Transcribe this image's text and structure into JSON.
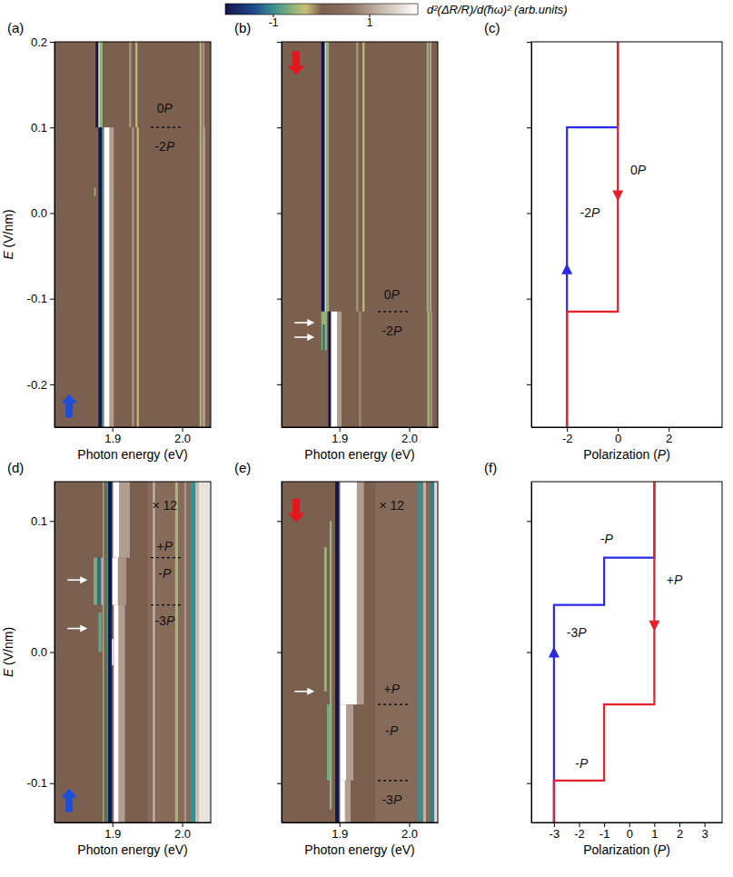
{
  "chart_data": [
    {
      "type": "heatmap",
      "title": "(a)",
      "xlabel": "Photon energy (eV)",
      "ylabel": "E (V/nm)",
      "xlim": [
        1.817,
        2.041
      ],
      "xticks": [
        1.9,
        {
          "value": 2,
          "label": "2.0"
        }
      ],
      "ylim": [
        -0.25,
        0.2
      ],
      "yticks": [
        -0.2,
        -0.1,
        {
          "value": 0,
          "label": "0.0"
        },
        0.1,
        0.2
      ],
      "colorbar": {
        "label": "d²(ΔR/R)/d(ħω)² (arb.units)",
        "range": [
          -2,
          2
        ],
        "ticks": [
          -1,
          1
        ]
      },
      "heatmap": {
        "background": 0,
        "cells": [
          [
            1.876,
            1.88,
            0.1,
            0.2,
            -2
          ],
          [
            1.88,
            1.882,
            0.1,
            0.2,
            1.6
          ],
          [
            1.882,
            1.886,
            0.1,
            0.2,
            -0.6
          ],
          [
            1.924,
            1.927,
            0.1,
            0.2,
            0.9
          ],
          [
            1.933,
            1.936,
            0.1,
            0.2,
            -0.4
          ],
          [
            2.025,
            2.028,
            0.1,
            0.2,
            -0.5
          ],
          [
            2.029,
            2.032,
            0.1,
            0.2,
            0.9
          ],
          [
            1.88,
            1.885,
            -0.25,
            0.1,
            -2
          ],
          [
            1.885,
            1.888,
            -0.25,
            0.1,
            -1.0
          ],
          [
            1.888,
            1.896,
            -0.25,
            0.1,
            2
          ],
          [
            1.896,
            1.902,
            -0.25,
            0.1,
            1.0
          ],
          [
            1.928,
            1.931,
            -0.25,
            0.1,
            0.9
          ],
          [
            1.935,
            1.938,
            -0.25,
            0.1,
            -0.3
          ],
          [
            2.025,
            2.028,
            -0.25,
            0.1,
            -0.5
          ],
          [
            2.029,
            2.033,
            -0.25,
            0.1,
            1.0
          ],
          [
            1.874,
            1.876,
            0.02,
            0.03,
            -0.5
          ]
        ]
      },
      "annotations": [
        {
          "text": "0P",
          "x": 1.975,
          "y": 0.122
        },
        {
          "text": "-2P",
          "x": 1.975,
          "y": 0.078
        }
      ],
      "dashed_lines": [
        {
          "y": 0.1,
          "x": [
            1.955,
            2.0
          ]
        }
      ],
      "arrows": [
        {
          "x": 1.838,
          "y": -0.225,
          "direction": "up",
          "color": "#1f4fd8"
        }
      ]
    },
    {
      "type": "heatmap",
      "title": "(b)",
      "xlabel": "Photon energy (eV)",
      "tick_labels": "x",
      "xlim": [
        1.817,
        2.041
      ],
      "xticks": [
        1.9,
        {
          "value": 2,
          "label": "2.0"
        }
      ],
      "ylim": [
        -0.25,
        0.2
      ],
      "yticks": [
        -0.2,
        -0.1,
        0,
        0.1,
        0.2
      ],
      "heatmap": {
        "background": 0,
        "cells": [
          [
            1.874,
            1.879,
            -0.115,
            0.2,
            -2
          ],
          [
            1.879,
            1.881,
            -0.115,
            0.2,
            1.6
          ],
          [
            1.881,
            1.885,
            -0.115,
            0.2,
            -0.6
          ],
          [
            1.924,
            1.927,
            -0.115,
            0.2,
            0.9
          ],
          [
            1.933,
            1.936,
            -0.115,
            0.2,
            -0.4
          ],
          [
            2.025,
            2.028,
            -0.115,
            0.2,
            -0.6
          ],
          [
            2.029,
            2.032,
            -0.115,
            0.2,
            1.0
          ],
          [
            1.884,
            1.888,
            -0.25,
            -0.115,
            -2
          ],
          [
            1.888,
            1.897,
            -0.25,
            -0.115,
            2
          ],
          [
            1.897,
            1.903,
            -0.25,
            -0.115,
            1.0
          ],
          [
            1.928,
            1.931,
            -0.25,
            -0.115,
            0.8
          ],
          [
            2.026,
            2.029,
            -0.25,
            -0.115,
            -0.5
          ],
          [
            2.03,
            2.033,
            -0.25,
            -0.115,
            0.9
          ],
          [
            1.874,
            1.882,
            -0.16,
            -0.115,
            -0.6
          ],
          [
            1.876,
            1.879,
            -0.16,
            -0.13,
            -1.2
          ]
        ]
      },
      "annotations": [
        {
          "text": "0P",
          "x": 1.975,
          "y": -0.095
        },
        {
          "text": "-2P",
          "x": 1.975,
          "y": -0.137
        }
      ],
      "dashed_lines": [
        {
          "y": -0.115,
          "x": [
            1.955,
            2.0
          ]
        }
      ],
      "arrows": [
        {
          "x": 1.838,
          "y": 0.175,
          "direction": "down",
          "color": "#e8141c"
        },
        {
          "x": 1.846,
          "y": -0.128,
          "direction": "right",
          "color": "#ffffff"
        },
        {
          "x": 1.846,
          "y": -0.145,
          "direction": "right",
          "color": "#ffffff"
        }
      ]
    },
    {
      "type": "line",
      "title": "(c)",
      "xlabel": "Polarization (P)",
      "tick_labels": "x",
      "xlim": [
        -3.4,
        4.1
      ],
      "xticks": [
        -2,
        0,
        2
      ],
      "ylim": [
        -0.25,
        0.2
      ],
      "yticks": [
        -0.2,
        -0.1,
        0,
        0.1,
        0.2
      ],
      "series": [
        {
          "color": "#2a2ae6",
          "x": [
            -2,
            -2,
            0,
            0
          ],
          "values": [
            -0.25,
            0.1,
            0.1,
            0.2
          ]
        },
        {
          "color": "#e8202a",
          "x": [
            0,
            0,
            -2,
            -2
          ],
          "values": [
            0.2,
            -0.115,
            -0.115,
            -0.25
          ]
        }
      ],
      "annotations": [
        {
          "text": "-2P",
          "x": -1.1,
          "y": 0.0
        },
        {
          "text": "0P",
          "x": 0.8,
          "y": 0.05
        }
      ],
      "arrows": [
        {
          "x": -2,
          "y": -0.065,
          "direction": "up",
          "color": "#2a2ae6"
        },
        {
          "x": 0,
          "y": 0.02,
          "direction": "down",
          "color": "#e8202a"
        }
      ]
    },
    {
      "type": "heatmap",
      "title": "(d)",
      "xlabel": "Photon energy (eV)",
      "ylabel": "E (V/nm)",
      "xlim": [
        1.817,
        2.041
      ],
      "xticks": [
        1.9,
        {
          "value": 2,
          "label": "2.0"
        }
      ],
      "ylim": [
        -0.13,
        0.13
      ],
      "yticks": [
        -0.1,
        {
          "value": 0,
          "label": "0.0"
        },
        0.1
      ],
      "heatmap": {
        "background": 0,
        "cells": [
          [
            1.951,
            2.041,
            -0.13,
            0.13,
            0.35
          ],
          [
            1.958,
            1.961,
            -0.13,
            0.13,
            1.2
          ],
          [
            1.99,
            1.994,
            -0.13,
            0.13,
            -0.5
          ],
          [
            2.003,
            2.006,
            -0.13,
            0.13,
            0.9
          ],
          [
            2.012,
            2.019,
            -0.13,
            0.13,
            -1.0
          ],
          [
            2.019,
            2.024,
            -0.13,
            0.13,
            1.3
          ],
          [
            2.024,
            2.041,
            -0.13,
            0.13,
            1.7
          ],
          [
            1.886,
            1.888,
            -0.13,
            0.13,
            -0.6
          ],
          [
            1.892,
            1.894,
            -0.13,
            0.13,
            -1.0
          ],
          [
            1.894,
            1.899,
            -0.13,
            0.13,
            -2
          ],
          [
            1.901,
            1.91,
            0.072,
            0.13,
            2
          ],
          [
            1.91,
            1.925,
            0.072,
            0.13,
            1.0
          ],
          [
            1.9,
            1.908,
            0.036,
            0.072,
            2
          ],
          [
            1.908,
            1.92,
            0.036,
            0.072,
            0.9
          ],
          [
            1.873,
            1.878,
            0.036,
            0.072,
            -0.7
          ],
          [
            1.879,
            1.883,
            0.036,
            0.072,
            -1.2
          ],
          [
            1.884,
            1.886,
            0.036,
            0.072,
            1.2
          ],
          [
            1.902,
            1.909,
            -0.13,
            0.036,
            2
          ],
          [
            1.909,
            1.918,
            -0.13,
            0.036,
            1.0
          ],
          [
            1.88,
            1.885,
            0.0,
            0.03,
            -0.8
          ],
          [
            1.899,
            1.902,
            -0.01,
            0.01,
            1.5
          ]
        ]
      },
      "annotations": [
        {
          "text": "× 12",
          "x": 1.975,
          "y": 0.112
        },
        {
          "text": "+P",
          "x": 1.975,
          "y": 0.081
        },
        {
          "text": "-P",
          "x": 1.975,
          "y": 0.06
        },
        {
          "text": "-3P",
          "x": 1.975,
          "y": 0.024
        }
      ],
      "dashed_lines": [
        {
          "y": 0.072,
          "x": [
            1.955,
            2.0
          ]
        },
        {
          "y": 0.036,
          "x": [
            1.955,
            2.0
          ]
        }
      ],
      "arrows": [
        {
          "x": 1.838,
          "y": -0.113,
          "direction": "up",
          "color": "#1f4fd8"
        },
        {
          "x": 1.846,
          "y": 0.055,
          "direction": "right",
          "color": "#ffffff"
        },
        {
          "x": 1.846,
          "y": 0.018,
          "direction": "right",
          "color": "#ffffff"
        }
      ]
    },
    {
      "type": "heatmap",
      "title": "(e)",
      "xlabel": "Photon energy (eV)",
      "tick_labels": "x",
      "xlim": [
        1.817,
        2.041
      ],
      "xticks": [
        1.9,
        {
          "value": 2,
          "label": "2.0"
        }
      ],
      "ylim": [
        -0.13,
        0.13
      ],
      "yticks": [
        -0.1,
        0,
        0.1
      ],
      "heatmap": {
        "background": 0,
        "cells": [
          [
            1.951,
            2.041,
            -0.13,
            0.13,
            0.35
          ],
          [
            2.012,
            2.018,
            -0.13,
            0.13,
            -1.0
          ],
          [
            2.02,
            2.024,
            -0.13,
            0.13,
            1.2
          ],
          [
            2.03,
            2.036,
            -0.13,
            0.13,
            -1.1
          ],
          [
            2.036,
            2.041,
            -0.13,
            0.13,
            1.6
          ],
          [
            1.894,
            1.899,
            -0.13,
            0.13,
            -2
          ],
          [
            1.901,
            1.925,
            -0.04,
            0.13,
            2
          ],
          [
            1.925,
            1.935,
            -0.04,
            0.13,
            1.0
          ],
          [
            1.901,
            1.91,
            -0.098,
            -0.04,
            2
          ],
          [
            1.91,
            1.92,
            -0.098,
            -0.04,
            1.0
          ],
          [
            1.882,
            1.887,
            -0.098,
            -0.04,
            -0.7
          ],
          [
            1.901,
            1.908,
            -0.13,
            -0.098,
            2
          ],
          [
            1.908,
            1.916,
            -0.13,
            -0.098,
            1.0
          ],
          [
            1.878,
            1.882,
            -0.03,
            0.08,
            -0.6
          ],
          [
            1.886,
            1.889,
            -0.12,
            0.1,
            -0.6
          ]
        ]
      },
      "annotations": [
        {
          "text": "× 12",
          "x": 1.975,
          "y": 0.112
        },
        {
          "text": "+P",
          "x": 1.975,
          "y": -0.028
        },
        {
          "text": "-P",
          "x": 1.975,
          "y": -0.06
        },
        {
          "text": "-3P",
          "x": 1.975,
          "y": -0.113
        }
      ],
      "dashed_lines": [
        {
          "y": -0.04,
          "x": [
            1.955,
            2.0
          ]
        },
        {
          "y": -0.098,
          "x": [
            1.955,
            2.0
          ]
        }
      ],
      "arrows": [
        {
          "x": 1.838,
          "y": 0.108,
          "direction": "down",
          "color": "#e8141c"
        },
        {
          "x": 1.846,
          "y": -0.03,
          "direction": "right",
          "color": "#ffffff"
        }
      ]
    },
    {
      "type": "line",
      "title": "(f)",
      "xlabel": "Polarization (P)",
      "tick_labels": "x",
      "xlim": [
        -3.9,
        3.7
      ],
      "xticks": [
        -3,
        -2,
        -1,
        0,
        1,
        2,
        3
      ],
      "ylim": [
        -0.13,
        0.13
      ],
      "yticks": [
        -0.1,
        0,
        0.1
      ],
      "series": [
        {
          "color": "#2a2ae6",
          "x": [
            -3,
            -3,
            -1,
            -1,
            1,
            1
          ],
          "values": [
            -0.13,
            0.036,
            0.036,
            0.072,
            0.072,
            0.13
          ]
        },
        {
          "color": "#e8202a",
          "x": [
            1,
            1,
            -1,
            -1,
            -3,
            -3
          ],
          "values": [
            0.13,
            -0.04,
            -0.04,
            -0.098,
            -0.098,
            -0.13
          ]
        }
      ],
      "annotations": [
        {
          "text": "-P",
          "x": -0.9,
          "y": 0.086
        },
        {
          "text": "-3P",
          "x": -2.1,
          "y": 0.015
        },
        {
          "text": "+P",
          "x": 1.8,
          "y": 0.055
        },
        {
          "text": "-P",
          "x": -1.9,
          "y": -0.085
        }
      ],
      "arrows": [
        {
          "x": -3,
          "y": 0.0,
          "direction": "up",
          "color": "#2a2ae6"
        },
        {
          "x": 1,
          "y": 0.02,
          "direction": "down",
          "color": "#e8202a"
        }
      ]
    }
  ]
}
